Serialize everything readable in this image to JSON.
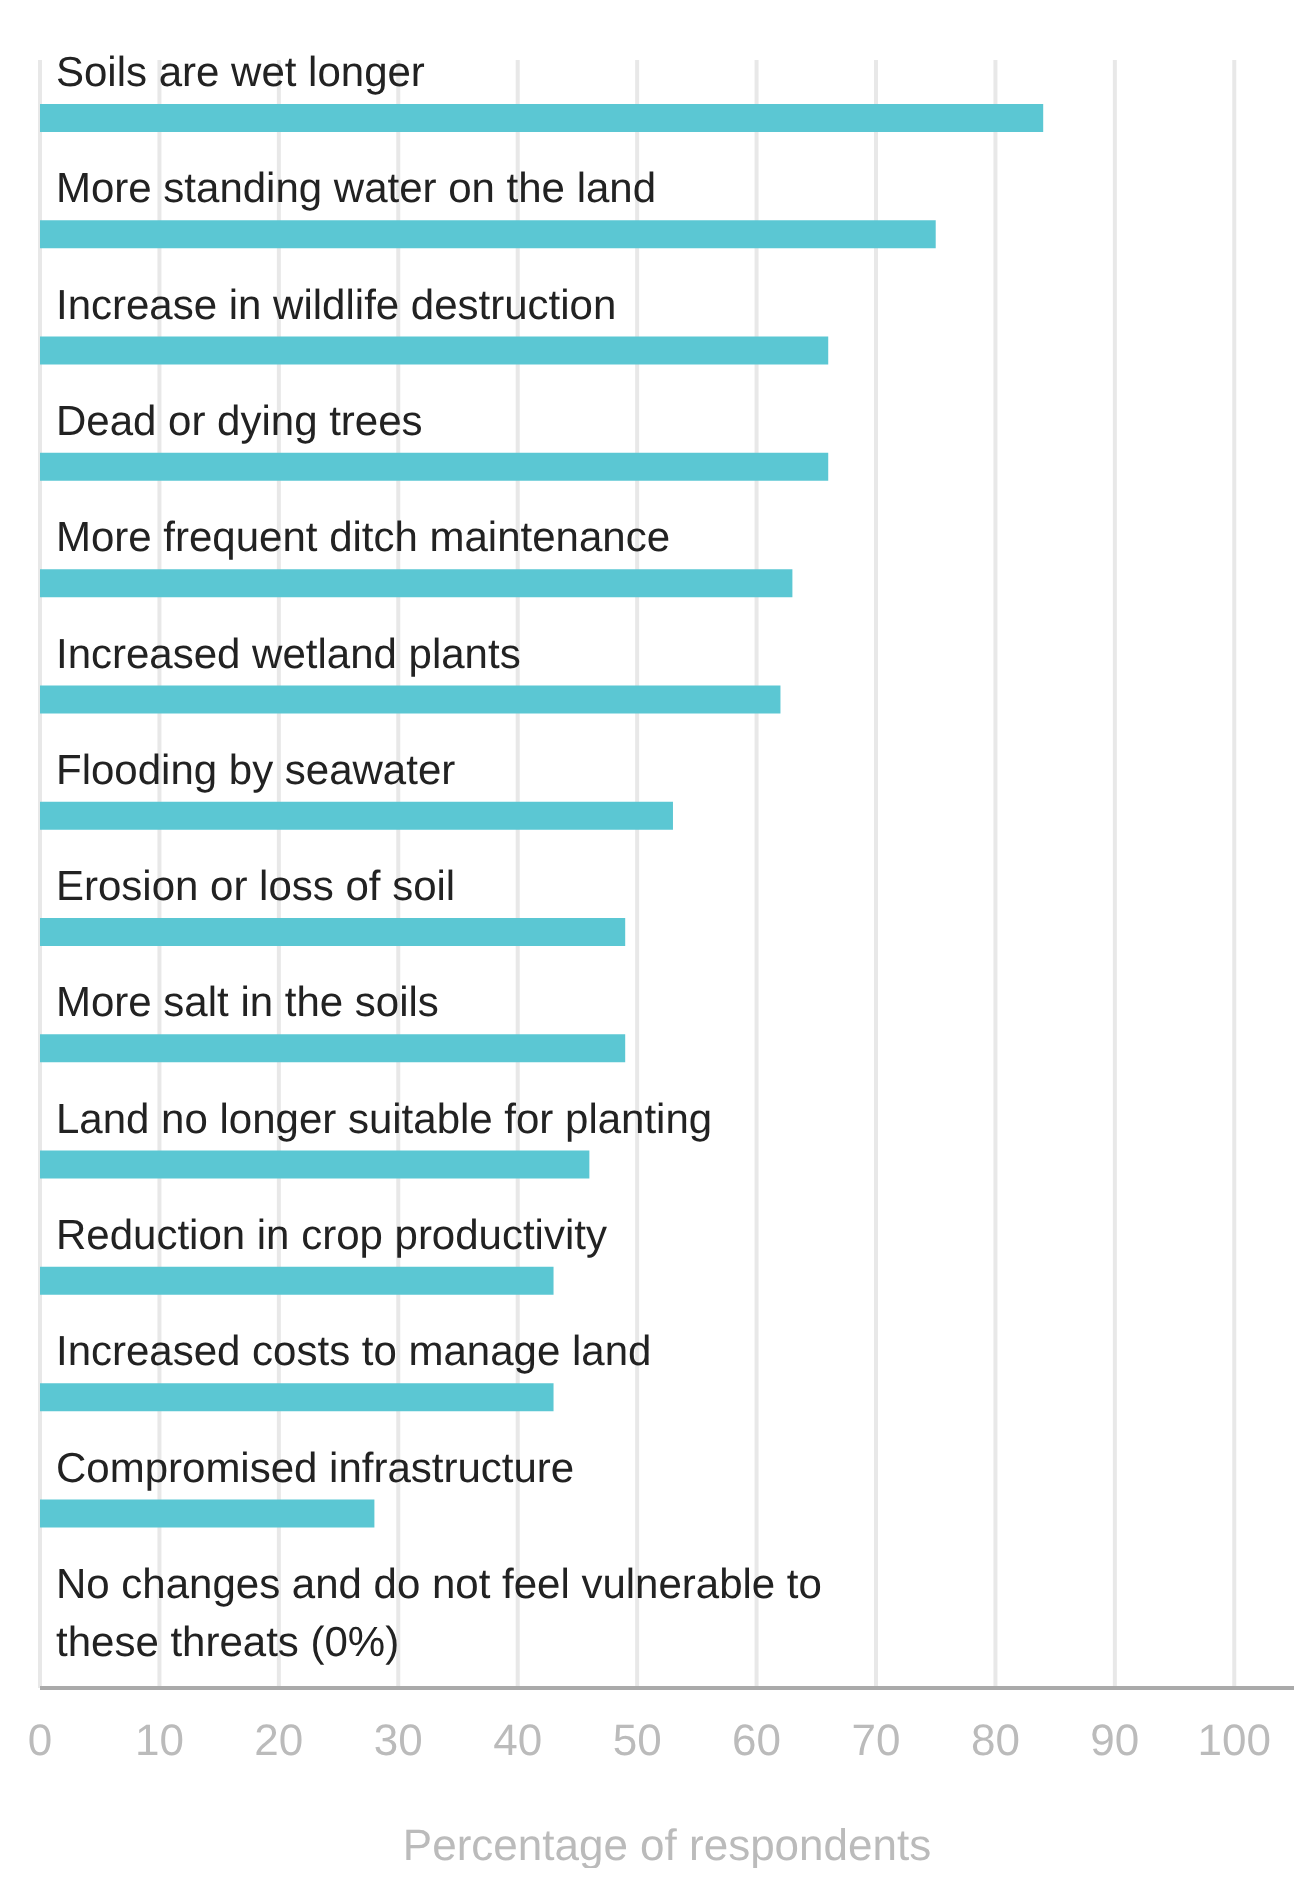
{
  "chart_data": {
    "type": "bar",
    "orientation": "horizontal",
    "categories": [
      "Soils are wet longer",
      "More standing water on the land",
      "Increase in wildlife destruction",
      "Dead or dying trees",
      "More frequent ditch maintenance",
      "Increased wetland plants",
      "Flooding by seawater",
      "Erosion or loss of soil",
      "More salt in the soils",
      "Land no longer suitable for planting",
      "Reduction in crop productivity",
      "Increased costs to manage land",
      "Compromised infrastructure",
      "No changes and do not feel vulnerable to these threats (0%)"
    ],
    "values": [
      84,
      75,
      66,
      66,
      63,
      62,
      53,
      49,
      49,
      46,
      43,
      43,
      28,
      0
    ],
    "color": "#5bc7d3",
    "xlabel": "Percentage of respondents",
    "xlim": [
      0,
      105
    ],
    "xticks": [
      0,
      10,
      20,
      30,
      40,
      50,
      60,
      70,
      80,
      90,
      100
    ],
    "grid": "x"
  }
}
